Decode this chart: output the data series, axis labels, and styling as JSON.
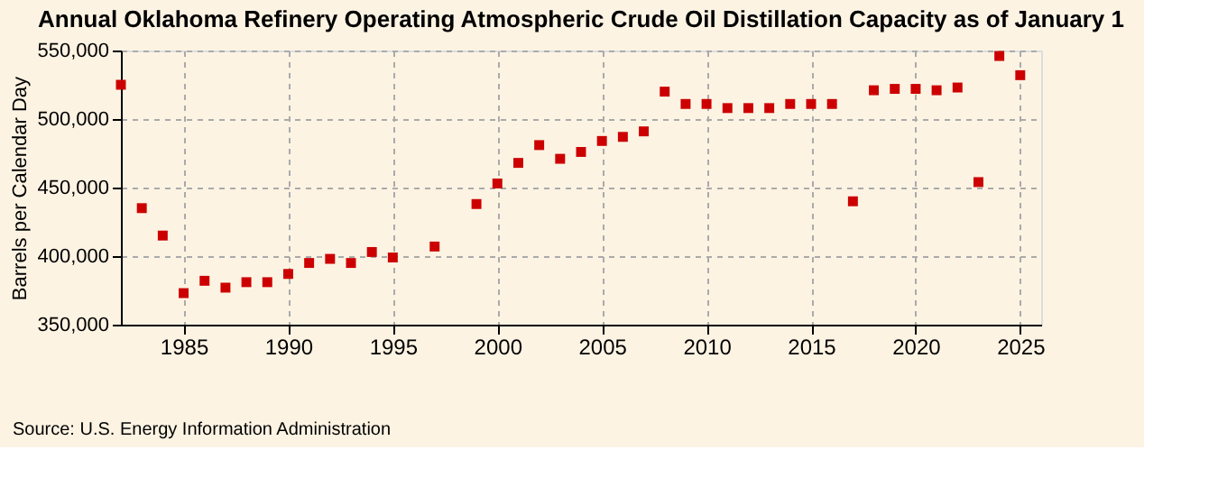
{
  "chart_data": {
    "type": "scatter",
    "title": "Annual Oklahoma Refinery Operating Atmospheric Crude Oil Distillation Capacity as of January 1",
    "ylabel": "Barrels per Calendar Day",
    "annotations": [
      "Source: U.S. Energy Information Administration"
    ],
    "x": [
      1982,
      1983,
      1984,
      1985,
      1986,
      1987,
      1988,
      1989,
      1990,
      1991,
      1992,
      1993,
      1994,
      1995,
      1997,
      1999,
      2000,
      2001,
      2002,
      2003,
      2004,
      2005,
      2006,
      2007,
      2008,
      2009,
      2010,
      2011,
      2012,
      2013,
      2014,
      2015,
      2016,
      2017,
      2018,
      2019,
      2020,
      2021,
      2022,
      2023,
      2024,
      2025
    ],
    "series": [
      {
        "color": "#cc0000",
        "values": [
          525000,
          435000,
          415000,
          373000,
          382000,
          377000,
          381000,
          381000,
          387000,
          395000,
          398000,
          395000,
          403000,
          399000,
          407000,
          438000,
          453000,
          468000,
          481000,
          471000,
          476000,
          484000,
          487000,
          491000,
          520000,
          511000,
          511000,
          508000,
          508000,
          508000,
          511000,
          511000,
          511000,
          440000,
          521000,
          522000,
          522000,
          521000,
          523000,
          454000,
          546000,
          532000
        ]
      }
    ],
    "xlim": [
      1982,
      2026
    ],
    "xticks": [
      1985,
      1990,
      1995,
      2000,
      2005,
      2010,
      2015,
      2020,
      2025
    ],
    "ylim": [
      350000,
      550000
    ],
    "yticks": [
      {
        "value": 350000,
        "label": "350,000"
      },
      {
        "value": 400000,
        "label": "400,000"
      },
      {
        "value": 450000,
        "label": "450,000"
      },
      {
        "value": 500000,
        "label": "500,000"
      },
      {
        "value": 550000,
        "label": "550,000"
      }
    ],
    "grid": true,
    "marker": "square"
  }
}
